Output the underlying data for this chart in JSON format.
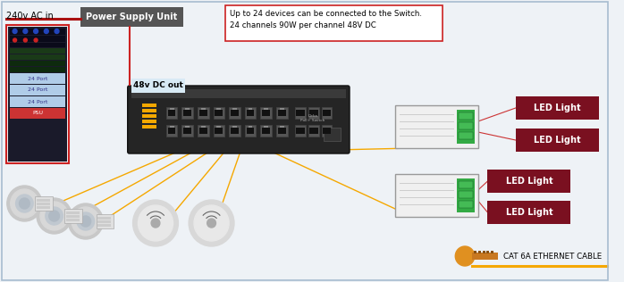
{
  "bg_color": "#eef2f6",
  "border_color": "#a8bcd0",
  "label_240v": "240v AC in",
  "label_psu": "Power Supply Unit",
  "label_48v": "48v DC out",
  "label_info": "Up to 24 devices can be connected to the Switch.\n24 channels 90W per channel 48V DC",
  "label_cat6": "CAT 6A ETHERNET CABLE",
  "led_color": "#7a1020",
  "led_text_color": "#ffffff",
  "psu_box_color": "#555555",
  "psu_text_color": "#ffffff",
  "info_border_color": "#cc2222",
  "info_bg_color": "#ffffff",
  "line_yellow": "#f5a800",
  "line_red": "#cc3333",
  "switch_color": "#1e1e1e",
  "rack_border_color": "#cc2222",
  "rack_bg_color": "#1a1a2a",
  "dc_label_bg": "#d8eaf5",
  "sensor_body_color": "#e0e0e0",
  "sensor_lens_color": "#d0d4d8",
  "disk_outer_color": "#d8d8d8",
  "disk_inner_color": "#ececec",
  "led_drv_color": "#f0f0f0",
  "led_drv_green": "#33aa44",
  "cat6_cable_color": "#e09020",
  "cat6_body_color": "#c87820"
}
